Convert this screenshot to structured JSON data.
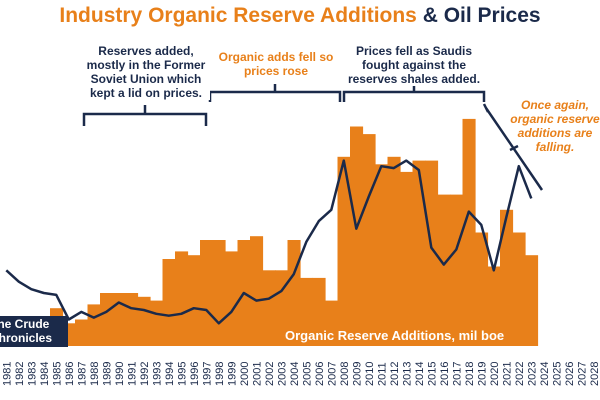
{
  "title": {
    "part1": "Industry Organic Reserve Additions",
    "part2": " & Oil Prices"
  },
  "annotations": {
    "left": "Reserves added, mostly in the Former Soviet Union which kept a lid on prices.",
    "middle": "Organic adds fell so prices rose",
    "right_box": "Prices fell as Saudis fought against the reserves shales added.",
    "far_right": "Once again, organic reserve additions are falling."
  },
  "brand": {
    "line1": "The Crude",
    "line2": "Chronicles"
  },
  "series_label": "Organic Reserve Additions, mil boe",
  "colors": {
    "bars": "#e8801a",
    "line": "#1b2a4a",
    "title_orange": "#e8801a",
    "title_navy": "#1b2a4a"
  },
  "chart_data": {
    "type": "bar",
    "categories": [
      "1981",
      "1982",
      "1983",
      "1984",
      "1985",
      "1986",
      "1987",
      "1988",
      "1989",
      "1990",
      "1991",
      "1992",
      "1993",
      "1994",
      "1995",
      "1996",
      "1997",
      "1998",
      "1999",
      "2000",
      "2001",
      "2002",
      "2003",
      "2004",
      "2005",
      "2006",
      "2007",
      "2008",
      "2009",
      "2010",
      "2011",
      "2012",
      "2013",
      "2014",
      "2015",
      "2016",
      "2017",
      "2018",
      "2019",
      "2020",
      "2021",
      "2022",
      "2023",
      "2024",
      "2025",
      "2026",
      "2027",
      "2028"
    ],
    "series": [
      {
        "type": "bar",
        "values": [
          12,
          8,
          12,
          14,
          20,
          12,
          14,
          22,
          28,
          28,
          28,
          26,
          24,
          46,
          50,
          48,
          56,
          56,
          50,
          56,
          58,
          40,
          40,
          56,
          36,
          36,
          24,
          100,
          116,
          112,
          96,
          100,
          92,
          98,
          98,
          80,
          80,
          120,
          60,
          42,
          72,
          60,
          48,
          null,
          null,
          null,
          null,
          null
        ]
      },
      {
        "type": "line",
        "values": [
          40,
          34,
          30,
          28,
          27,
          14,
          18,
          15,
          18,
          23,
          20,
          19,
          17,
          16,
          17,
          20,
          19,
          12,
          18,
          28,
          24,
          25,
          29,
          38,
          55,
          66,
          72,
          98,
          62,
          79,
          95,
          94,
          98,
          93,
          52,
          43,
          51,
          71,
          64,
          40,
          68,
          95,
          78,
          null,
          null,
          null,
          null,
          null
        ]
      }
    ],
    "annotations": [
      "Reserves added, mostly in the Former Soviet Union which kept a lid on prices.",
      "Organic adds fell so prices rose",
      "Prices fell as Saudis fought against the reserves shales added.",
      "Once again, organic reserve additions are falling."
    ],
    "ylim": [
      0,
      130
    ],
    "grid": false,
    "legend": "none"
  }
}
